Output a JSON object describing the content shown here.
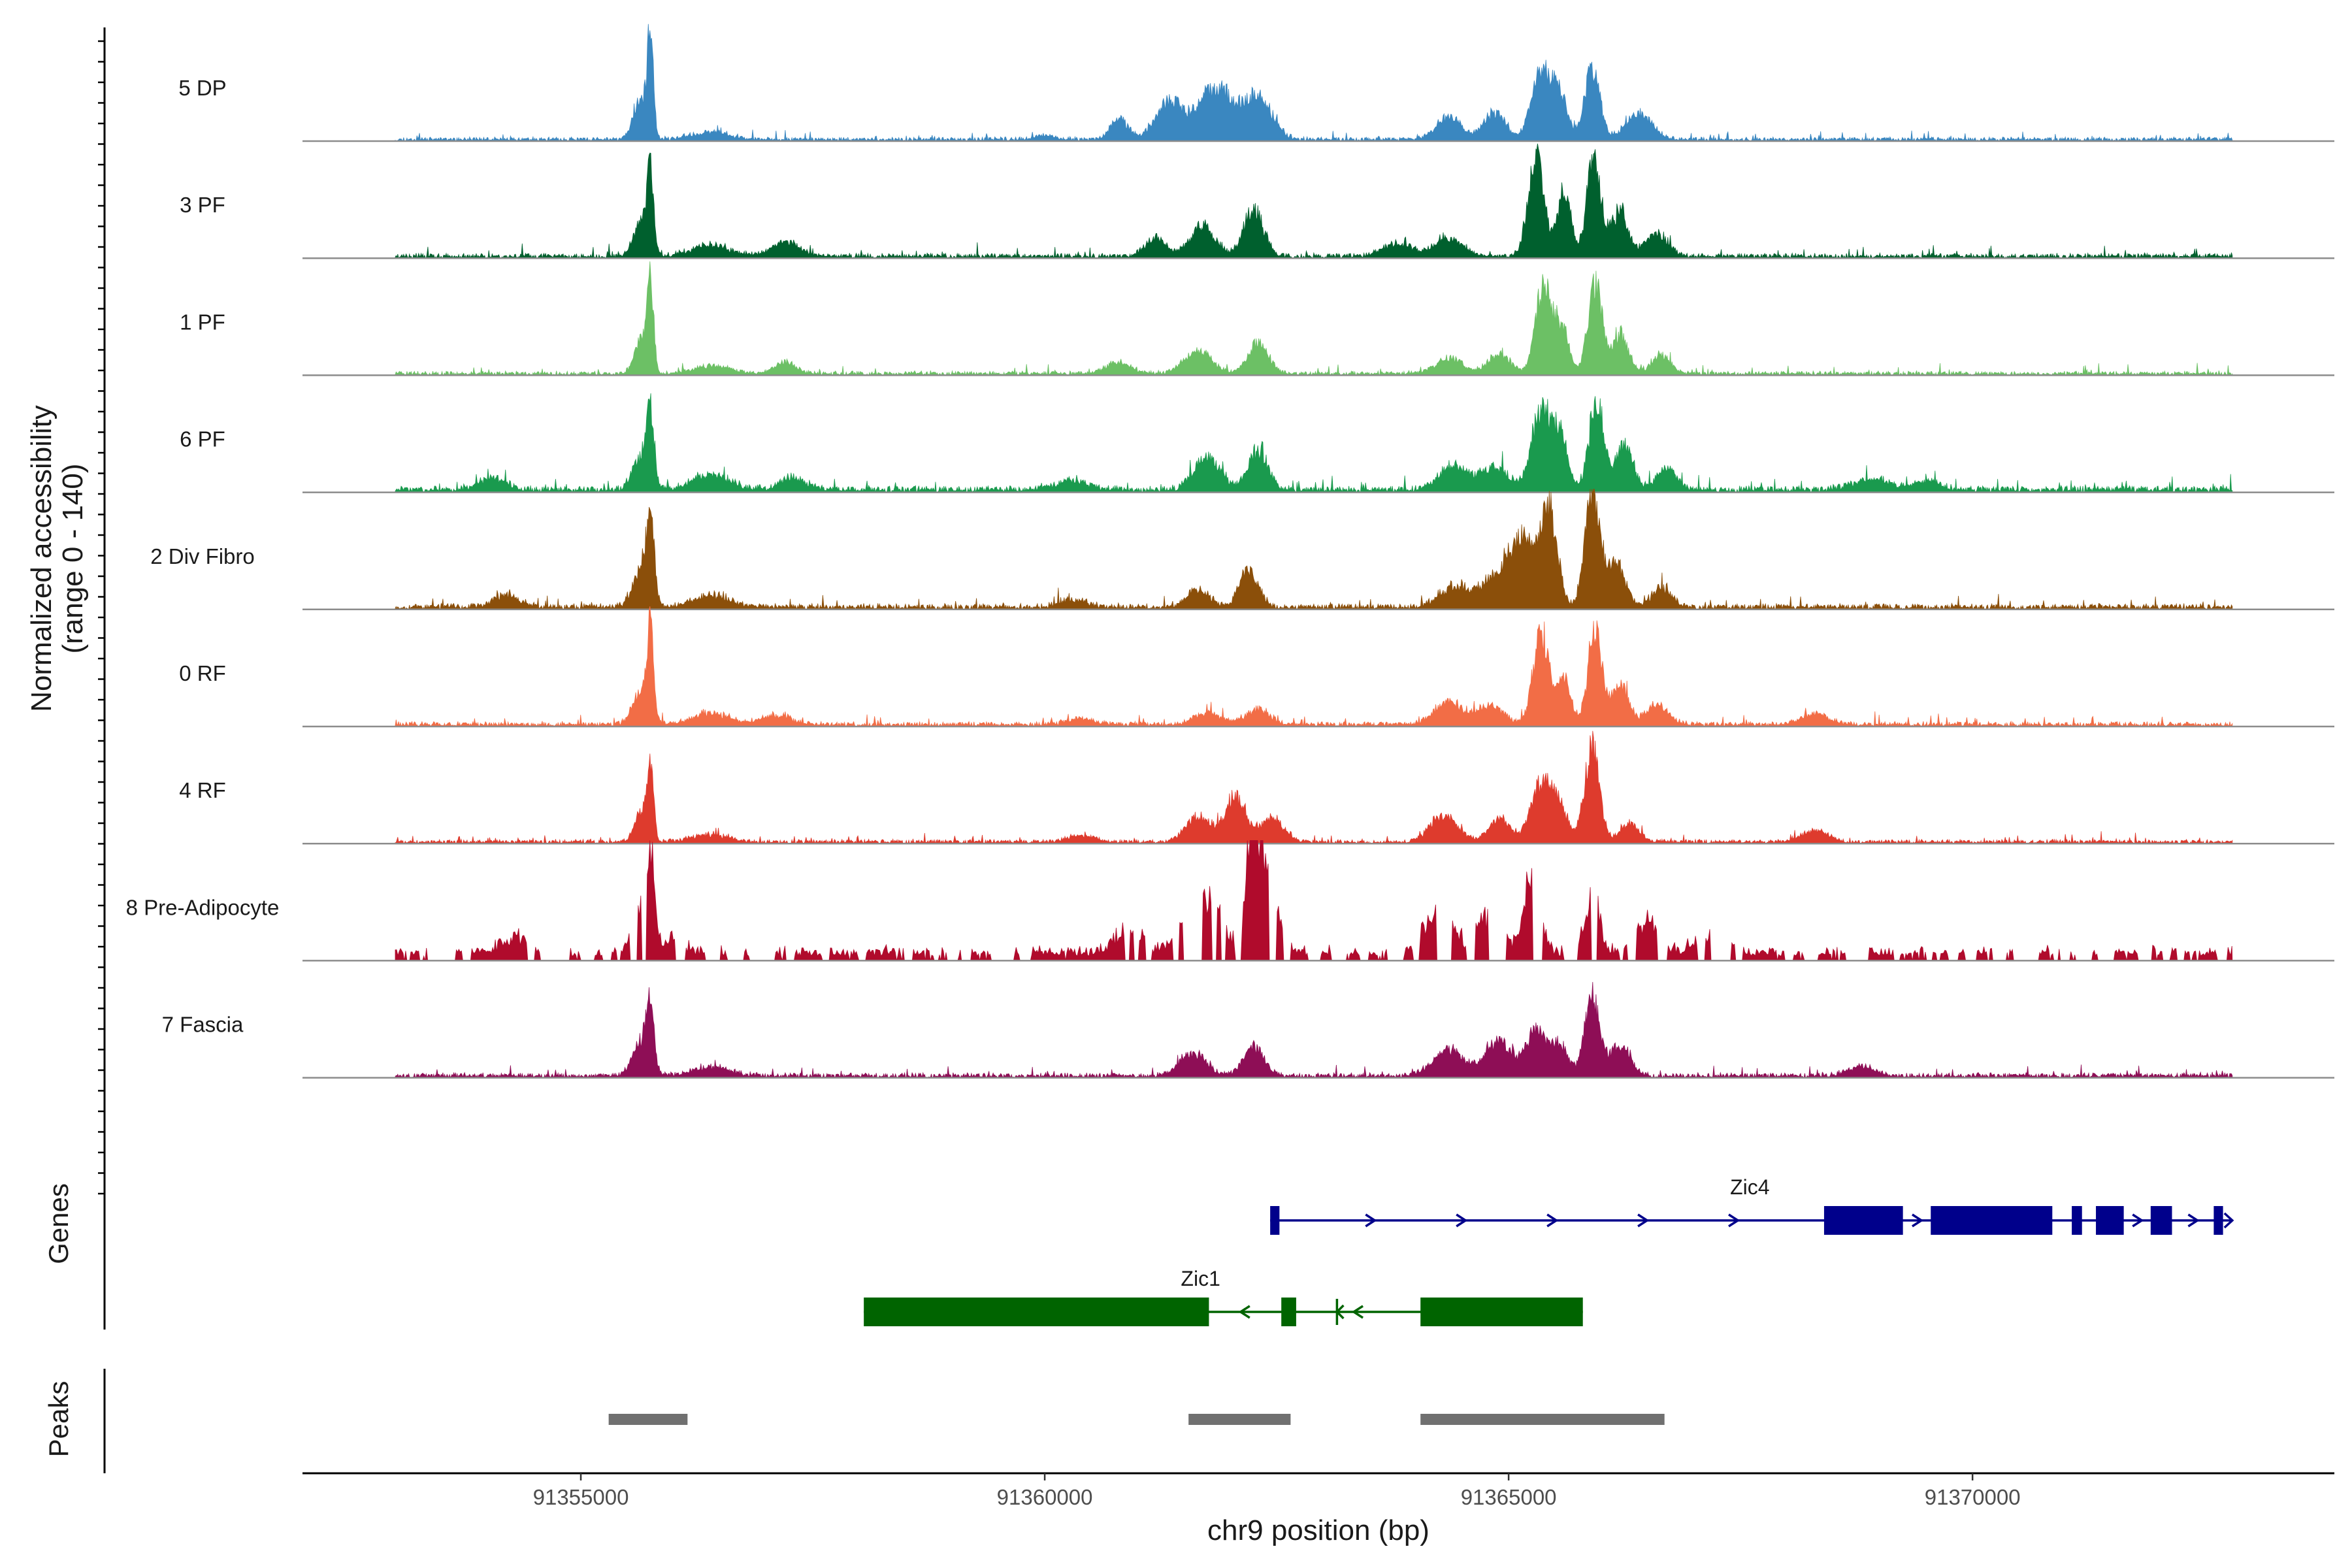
{
  "chart_data": {
    "type": "area",
    "title": "",
    "ylabel_line1": "Normalized accessibility",
    "ylabel_line2": "(range 0 - 140)",
    "xlabel": "chr9 position (bp)",
    "ylim": [
      0,
      140
    ],
    "xlim": [
      91352000,
      91373900
    ],
    "xticks": [
      91355000,
      91360000,
      91365000,
      91370000
    ],
    "tick_labels": [
      "91355000",
      "91360000",
      "91365000",
      "91370000"
    ],
    "region": [
      91353000,
      91372800
    ],
    "series": [
      {
        "name": "5 DP",
        "color": "#3a87c0",
        "noise": 5,
        "dense": true,
        "seed": 11,
        "peaks": [
          [
            91355750,
            130,
            30
          ],
          [
            91355650,
            55,
            80
          ],
          [
            91356400,
            10,
            200
          ],
          [
            91360000,
            5,
            120
          ],
          [
            91360800,
            30,
            90
          ],
          [
            91361350,
            50,
            150
          ],
          [
            91361850,
            70,
            180
          ],
          [
            91362300,
            55,
            150
          ],
          [
            91364350,
            30,
            130
          ],
          [
            91364850,
            35,
            120
          ],
          [
            91365350,
            95,
            100
          ],
          [
            91365550,
            55,
            90
          ],
          [
            91365900,
            95,
            80
          ],
          [
            91366400,
            35,
            140
          ]
        ]
      },
      {
        "name": "3 PF",
        "color": "#00602e",
        "noise": 6,
        "dense": true,
        "seed": 23,
        "peaks": [
          [
            91355750,
            100,
            35
          ],
          [
            91355650,
            45,
            80
          ],
          [
            91356400,
            15,
            200
          ],
          [
            91357200,
            20,
            150
          ],
          [
            91361200,
            25,
            110
          ],
          [
            91361700,
            40,
            130
          ],
          [
            91362250,
            60,
            110
          ],
          [
            91363800,
            18,
            150
          ],
          [
            91364350,
            25,
            150
          ],
          [
            91365300,
            130,
            85
          ],
          [
            91365600,
            90,
            70
          ],
          [
            91365920,
            130,
            75
          ],
          [
            91366200,
            60,
            90
          ],
          [
            91366600,
            30,
            120
          ]
        ]
      },
      {
        "name": "1 PF",
        "color": "#6cc065",
        "noise": 5,
        "dense": true,
        "seed": 31,
        "peaks": [
          [
            91355750,
            110,
            35
          ],
          [
            91355650,
            45,
            70
          ],
          [
            91356400,
            10,
            200
          ],
          [
            91357200,
            15,
            120
          ],
          [
            91360800,
            15,
            130
          ],
          [
            91361650,
            30,
            150
          ],
          [
            91362300,
            40,
            110
          ],
          [
            91364350,
            20,
            150
          ],
          [
            91364900,
            25,
            120
          ],
          [
            91365380,
            120,
            85
          ],
          [
            91365580,
            60,
            70
          ],
          [
            91365930,
            120,
            75
          ],
          [
            91366200,
            50,
            90
          ],
          [
            91366640,
            25,
            100
          ]
        ]
      },
      {
        "name": "6 PF",
        "color": "#1a9a4e",
        "noise": 8,
        "dense": true,
        "seed": 47,
        "peaks": [
          [
            91355750,
            90,
            40
          ],
          [
            91355650,
            45,
            90
          ],
          [
            91356400,
            20,
            200
          ],
          [
            91354050,
            15,
            150
          ],
          [
            91357300,
            15,
            150
          ],
          [
            91360300,
            12,
            180
          ],
          [
            91361750,
            45,
            140
          ],
          [
            91362300,
            50,
            110
          ],
          [
            91364400,
            30,
            160
          ],
          [
            91364850,
            30,
            150
          ],
          [
            91365350,
            105,
            100
          ],
          [
            91365550,
            70,
            80
          ],
          [
            91365950,
            120,
            80
          ],
          [
            91366250,
            60,
            90
          ],
          [
            91366700,
            30,
            100
          ],
          [
            91368900,
            15,
            180
          ],
          [
            91369500,
            10,
            150
          ]
        ]
      },
      {
        "name": "2 Div Fibro",
        "color": "#8b4f0a",
        "noise": 7,
        "dense": true,
        "seed": 53,
        "peaks": [
          [
            91355750,
            110,
            40
          ],
          [
            91355650,
            45,
            90
          ],
          [
            91356400,
            15,
            200
          ],
          [
            91354200,
            15,
            150
          ],
          [
            91360300,
            10,
            150
          ],
          [
            91361650,
            25,
            120
          ],
          [
            91362200,
            50,
            100
          ],
          [
            91364400,
            25,
            150
          ],
          [
            91364900,
            40,
            200
          ],
          [
            91365200,
            80,
            160
          ],
          [
            91365450,
            110,
            80
          ],
          [
            91365900,
            145,
            80
          ],
          [
            91366150,
            60,
            100
          ],
          [
            91366650,
            25,
            110
          ]
        ]
      },
      {
        "name": "0 RF",
        "color": "#f26d46",
        "noise": 6,
        "dense": true,
        "seed": 61,
        "peaks": [
          [
            91355750,
            115,
            35
          ],
          [
            91355650,
            45,
            90
          ],
          [
            91356400,
            15,
            200
          ],
          [
            91357100,
            12,
            150
          ],
          [
            91360400,
            8,
            150
          ],
          [
            91361750,
            15,
            150
          ],
          [
            91362300,
            20,
            120
          ],
          [
            91364350,
            30,
            150
          ],
          [
            91364800,
            25,
            140
          ],
          [
            91365350,
            125,
            85
          ],
          [
            91365600,
            60,
            70
          ],
          [
            91365930,
            125,
            75
          ],
          [
            91366200,
            55,
            90
          ],
          [
            91366600,
            25,
            120
          ],
          [
            91368300,
            15,
            150
          ]
        ]
      },
      {
        "name": "4 RF",
        "color": "#de3b2d",
        "noise": 5,
        "dense": true,
        "seed": 71,
        "peaks": [
          [
            91355750,
            85,
            35
          ],
          [
            91355650,
            40,
            70
          ],
          [
            91356400,
            10,
            200
          ],
          [
            91360400,
            8,
            150
          ],
          [
            91361650,
            35,
            130
          ],
          [
            91362050,
            60,
            110
          ],
          [
            91362450,
            30,
            130
          ],
          [
            91364300,
            35,
            150
          ],
          [
            91364900,
            30,
            120
          ],
          [
            91365350,
            75,
            110
          ],
          [
            91365550,
            45,
            90
          ],
          [
            91365900,
            125,
            80
          ],
          [
            91366300,
            25,
            100
          ],
          [
            91368300,
            15,
            150
          ]
        ]
      },
      {
        "name": "8 Pre-Adipocyte",
        "color": "#b00b2c",
        "noise": 12,
        "dense": false,
        "seed": 83,
        "peaks": [
          [
            91355750,
            120,
            40
          ],
          [
            91355650,
            60,
            100
          ],
          [
            91354300,
            20,
            150
          ],
          [
            91356000,
            25,
            110
          ],
          [
            91361700,
            70,
            200
          ],
          [
            91362250,
            150,
            70
          ],
          [
            91362400,
            90,
            110
          ],
          [
            91364250,
            60,
            150
          ],
          [
            91364800,
            50,
            130
          ],
          [
            91365250,
            100,
            90
          ],
          [
            91365900,
            80,
            80
          ],
          [
            91366500,
            40,
            150
          ],
          [
            91367200,
            30,
            150
          ],
          [
            91360900,
            30,
            150
          ]
        ]
      },
      {
        "name": "7 Fascia",
        "color": "#8e0e56",
        "noise": 6,
        "dense": true,
        "seed": 97,
        "peaks": [
          [
            91355750,
            80,
            40
          ],
          [
            91355650,
            45,
            90
          ],
          [
            91356400,
            12,
            200
          ],
          [
            91361600,
            30,
            140
          ],
          [
            91362250,
            40,
            110
          ],
          [
            91364350,
            35,
            160
          ],
          [
            91364900,
            45,
            150
          ],
          [
            91365300,
            65,
            100
          ],
          [
            91365550,
            40,
            90
          ],
          [
            91365900,
            105,
            80
          ],
          [
            91366200,
            40,
            110
          ],
          [
            91368800,
            12,
            150
          ]
        ]
      }
    ],
    "genes": [
      {
        "name": "Zic4",
        "strand": "+",
        "color": "#00008b",
        "row": 0,
        "start": 91362430,
        "end": 91372800,
        "label_pos": 91367600,
        "exons": [
          [
            91362430,
            91362530
          ],
          [
            91368400,
            91369250
          ],
          [
            91369550,
            91370860
          ],
          [
            91371070,
            91371180
          ],
          [
            91371330,
            91371630
          ],
          [
            91371920,
            91372150
          ],
          [
            91372600,
            91372700
          ]
        ]
      },
      {
        "name": "Zic1",
        "strand": "-",
        "color": "#006400",
        "row": 1,
        "start": 91358050,
        "end": 91365800,
        "label_pos": 91361680,
        "exons": [
          [
            91358050,
            91361770
          ],
          [
            91362550,
            91362710
          ],
          [
            91364050,
            91365800
          ]
        ]
      }
    ],
    "peak_regions": [
      [
        91355300,
        91356150
      ],
      [
        91361550,
        91362650
      ],
      [
        91364050,
        91366680
      ]
    ],
    "panel_titles": {
      "genes": "Genes",
      "peaks": "Peaks"
    },
    "colors": {
      "peak_bar": "#707070",
      "baseline": "#8c8c8c",
      "axis": "#000000"
    }
  }
}
